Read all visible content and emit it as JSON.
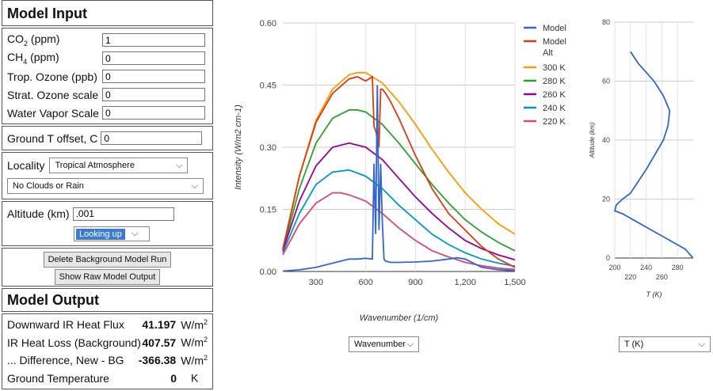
{
  "input": {
    "title": "Model Input",
    "co2": {
      "label": "CO",
      "sub": "2",
      "suffix": " (ppm)",
      "value": "1"
    },
    "ch4": {
      "label": "CH",
      "sub": "4",
      "suffix": " (ppm)",
      "value": "0"
    },
    "trop_ozone": {
      "label": "Trop. Ozone (ppb)",
      "value": "0"
    },
    "strat_ozone": {
      "label": "Strat. Ozone scale",
      "value": "0"
    },
    "water_vapor": {
      "label": "Water Vapor Scale",
      "value": "0"
    },
    "ground_t": {
      "label": "Ground T offset, C",
      "value": "0"
    },
    "locality": {
      "label": "Locality",
      "value": "Tropical Atmosphere"
    },
    "clouds": {
      "value": "No Clouds or Rain"
    },
    "altitude": {
      "label": "Altitude (km)",
      "value": ".001"
    },
    "looking": {
      "value": "Looking up"
    },
    "delete_button": "Delete Background Model Run",
    "raw_button": "Show Raw Model Output"
  },
  "output": {
    "title": "Model Output",
    "rows": [
      {
        "label": "Downward IR Heat Flux",
        "value": "41.197",
        "unit": "W/m",
        "sup": "2"
      },
      {
        "label": "IR Heat Loss (Background)",
        "value": "407.57",
        "unit": "W/m",
        "sup": "2"
      },
      {
        "label": "... Difference, New - BG",
        "value": "-366.38",
        "unit": "W/m",
        "sup": "2"
      },
      {
        "label": "Ground Temperature",
        "value": "0",
        "unit": "K",
        "sup": ""
      }
    ]
  },
  "spectrum_select": "Wavenumber",
  "profile_select": "T (K)",
  "colors": {
    "model": "#3366cc",
    "model_alt": "#dc3912",
    "k300": "#ff9900",
    "k280": "#2ca02c",
    "k260": "#990099",
    "k240": "#0099c6",
    "k220": "#dd4477"
  },
  "chart_data": [
    {
      "type": "line",
      "title": "",
      "xlabel": "Wavenumber (1/cm)",
      "ylabel": "Intensity (W/m2 cm-1)",
      "xlim": [
        100,
        1500
      ],
      "ylim": [
        0,
        0.6
      ],
      "xticks": [
        "300",
        "600",
        "900",
        "1,200",
        "1,500"
      ],
      "yticks": [
        "0.00",
        "0.15",
        "0.30",
        "0.45",
        "0.60"
      ],
      "grid": true,
      "legend": "right",
      "series": [
        {
          "name": "Model",
          "x": [
            100,
            200,
            300,
            400,
            500,
            550,
            600,
            640,
            650,
            660,
            670,
            680,
            690,
            700,
            710,
            720,
            750,
            800,
            900,
            1000,
            1100,
            1150,
            1200,
            1250,
            1300,
            1400,
            1500
          ],
          "values": [
            0.001,
            0.004,
            0.01,
            0.02,
            0.03,
            0.03,
            0.032,
            0.03,
            0.26,
            0.09,
            0.45,
            0.1,
            0.26,
            0.12,
            0.03,
            0.025,
            0.022,
            0.022,
            0.023,
            0.025,
            0.03,
            0.033,
            0.03,
            0.02,
            0.01,
            0.004,
            0.002
          ]
        },
        {
          "name": "Model Alt",
          "x": [
            100,
            200,
            300,
            400,
            500,
            550,
            600,
            640,
            650,
            660,
            670,
            680,
            690,
            700,
            720,
            750,
            800,
            900,
            1000,
            1100,
            1200,
            1300,
            1400,
            1500
          ],
          "values": [
            0.055,
            0.23,
            0.36,
            0.43,
            0.465,
            0.47,
            0.46,
            0.47,
            0.35,
            0.34,
            0.32,
            0.3,
            0.44,
            0.44,
            0.43,
            0.41,
            0.37,
            0.28,
            0.2,
            0.14,
            0.1,
            0.06,
            0.03,
            0.01
          ]
        },
        {
          "name": "300 K",
          "x": [
            100,
            200,
            300,
            400,
            500,
            550,
            600,
            700,
            800,
            900,
            1000,
            1100,
            1200,
            1300,
            1400,
            1500
          ],
          "values": [
            0.05,
            0.23,
            0.365,
            0.44,
            0.475,
            0.48,
            0.48,
            0.455,
            0.41,
            0.355,
            0.295,
            0.24,
            0.19,
            0.15,
            0.115,
            0.09
          ]
        },
        {
          "name": "280 K",
          "x": [
            100,
            200,
            300,
            400,
            500,
            550,
            600,
            700,
            800,
            900,
            1000,
            1100,
            1200,
            1300,
            1400,
            1500
          ],
          "values": [
            0.05,
            0.2,
            0.31,
            0.37,
            0.39,
            0.39,
            0.385,
            0.355,
            0.31,
            0.26,
            0.21,
            0.165,
            0.125,
            0.095,
            0.07,
            0.05
          ]
        },
        {
          "name": "260 K",
          "x": [
            100,
            200,
            300,
            400,
            500,
            600,
            700,
            800,
            900,
            1000,
            1100,
            1200,
            1300,
            1400,
            1500
          ],
          "values": [
            0.05,
            0.17,
            0.255,
            0.3,
            0.31,
            0.3,
            0.27,
            0.225,
            0.18,
            0.14,
            0.105,
            0.075,
            0.055,
            0.04,
            0.028
          ]
        },
        {
          "name": "240 K",
          "x": [
            100,
            200,
            300,
            400,
            500,
            600,
            700,
            800,
            900,
            1000,
            1100,
            1200,
            1300,
            1400,
            1500
          ],
          "values": [
            0.045,
            0.14,
            0.21,
            0.24,
            0.245,
            0.23,
            0.2,
            0.16,
            0.125,
            0.09,
            0.065,
            0.045,
            0.03,
            0.02,
            0.013
          ]
        },
        {
          "name": "220 K",
          "x": [
            100,
            200,
            300,
            400,
            450,
            500,
            600,
            700,
            800,
            900,
            1000,
            1100,
            1200,
            1300,
            1400,
            1500
          ],
          "values": [
            0.04,
            0.115,
            0.165,
            0.19,
            0.19,
            0.185,
            0.17,
            0.14,
            0.105,
            0.075,
            0.05,
            0.035,
            0.022,
            0.014,
            0.008,
            0.005
          ]
        }
      ]
    },
    {
      "type": "line",
      "title": "",
      "xlabel": "T (K)",
      "ylabel": "Altitude (km)",
      "xlim": [
        200,
        300
      ],
      "ylim": [
        0,
        80
      ],
      "xticks": [
        "200",
        "220",
        "240",
        "260",
        "280"
      ],
      "yticks": [
        "0",
        "20",
        "40",
        "60",
        "80"
      ],
      "grid": true,
      "series": [
        {
          "x": [
            299.7,
            290,
            270,
            250,
            230,
            210,
            200,
            202,
            210,
            220,
            240,
            262,
            268,
            270,
            262,
            250,
            240,
            230,
            220
          ],
          "values": [
            0,
            3,
            6,
            9,
            12,
            15,
            16,
            18,
            20,
            22,
            30,
            40,
            45,
            50,
            55,
            60,
            63,
            66,
            70
          ]
        }
      ]
    }
  ]
}
